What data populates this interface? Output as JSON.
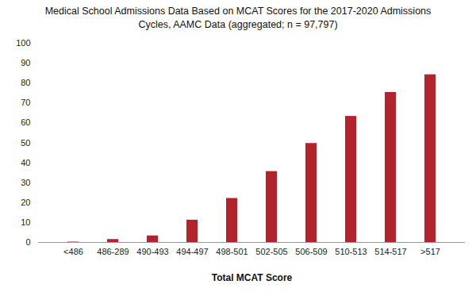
{
  "chart_data": {
    "type": "bar",
    "title": "Medical School Admissions Data Based on MCAT Scores for the 2017-2020 Admissions Cycles, AAMC Data (aggregated; n = 97,797)",
    "x_label": "Total MCAT Score",
    "categories": [
      "<486",
      "486-289",
      "490-493",
      "494-497",
      "498-501",
      "502-505",
      "506-509",
      "510-513",
      "514-517",
      ">517"
    ],
    "values": [
      0.2,
      1.5,
      3.3,
      11.2,
      22.1,
      35.6,
      49.7,
      63.3,
      75.3,
      84.2
    ],
    "color": "#b3232b",
    "ylim": [
      0,
      100
    ],
    "yticks": [
      0,
      10,
      20,
      30,
      40,
      50,
      60,
      70,
      80,
      90,
      100
    ],
    "grid": false
  }
}
